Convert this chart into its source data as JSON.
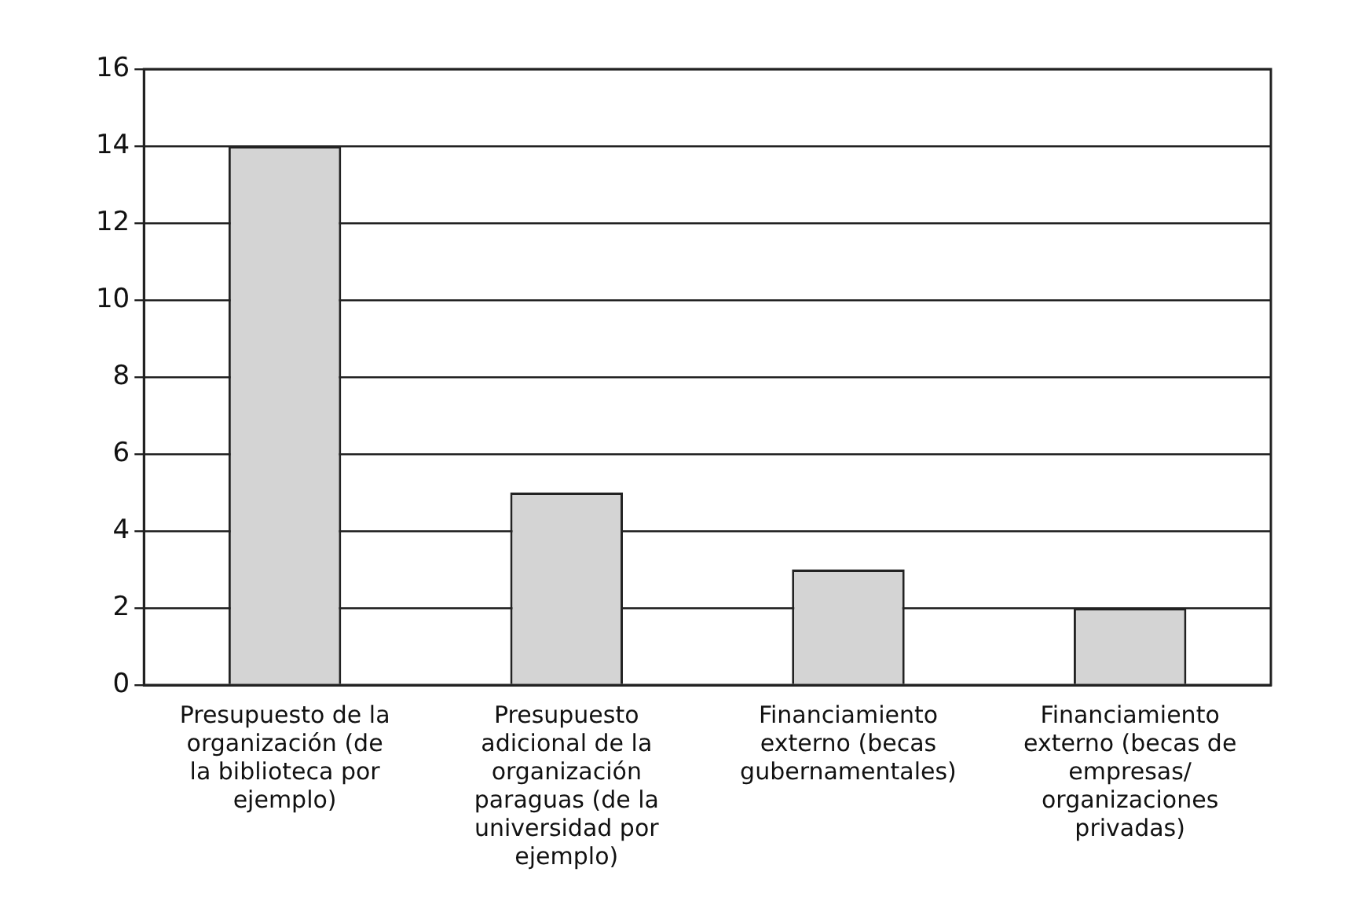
{
  "chart_data": {
    "type": "bar",
    "categories": [
      "Presupuesto de la organización (de la biblioteca por ejemplo)",
      "Presupuesto adicional de la organización paraguas (de la universidad por ejemplo)",
      "Financiamiento externo (becas gubernamentales)",
      "Financiamiento externo (becas de empresas/ organizaciones privadas)"
    ],
    "values": [
      14,
      5,
      3,
      2
    ],
    "color": "#d4d4d4",
    "ylim": [
      0,
      16
    ],
    "yticks": [
      0,
      2,
      4,
      6,
      8,
      10,
      12,
      14,
      16
    ],
    "grid": "y",
    "legend": false
  }
}
